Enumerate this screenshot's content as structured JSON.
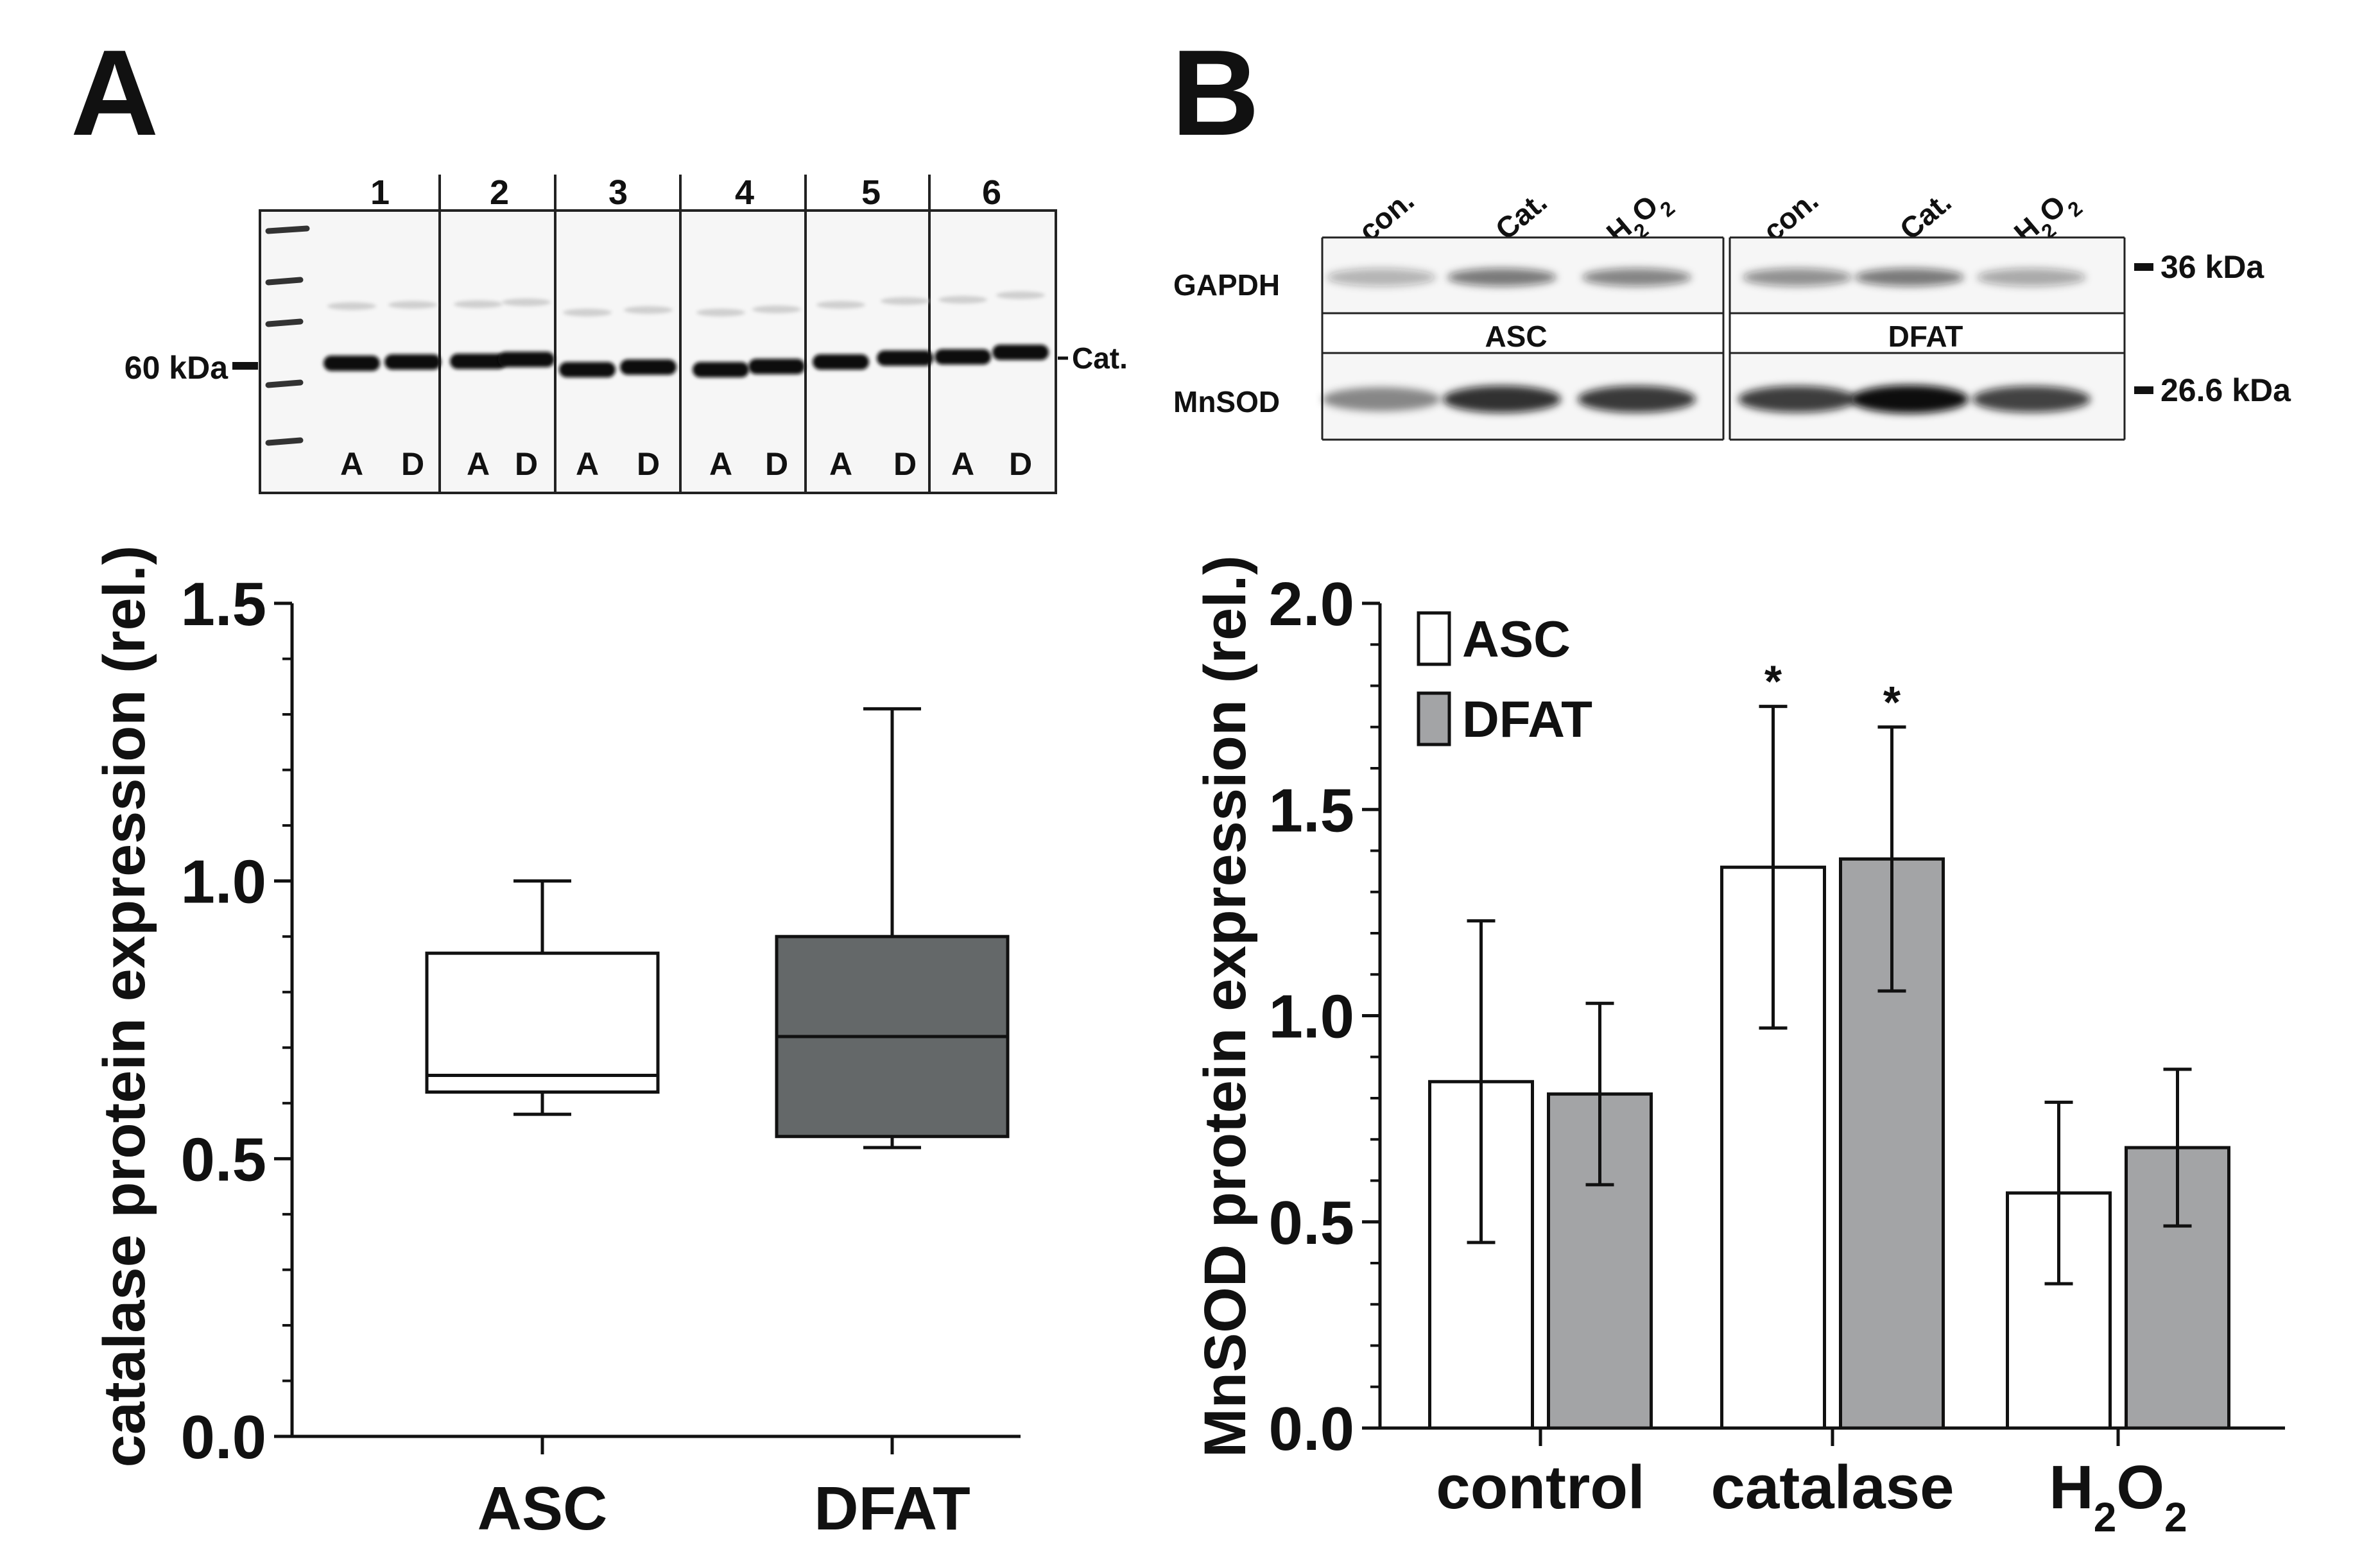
{
  "panels": {
    "a": "A",
    "b": "B"
  },
  "panel_a": {
    "blot": {
      "lanes": [
        "1",
        "2",
        "3",
        "4",
        "5",
        "6"
      ],
      "lane_pair_labels": [
        "A",
        "D"
      ],
      "marker_label": "60 kDa",
      "band_label": "Cat."
    }
  },
  "panel_b": {
    "blot": {
      "conditions": [
        "con.",
        "Cat.",
        "H2O2"
      ],
      "proteins": [
        "GAPDH",
        "MnSOD"
      ],
      "groups": [
        "ASC",
        "DFAT"
      ],
      "markers": [
        "36 kDa",
        "26.6 kDa"
      ]
    }
  },
  "chart_data": [
    {
      "type": "box",
      "panel": "A",
      "title": "",
      "xlabel": "",
      "ylabel": "catalase protein expression (rel.)",
      "ylim": [
        0,
        1.5
      ],
      "yticks": [
        "0.0",
        "0.5",
        "1.0",
        "1.5"
      ],
      "categories": [
        "ASC",
        "DFAT"
      ],
      "boxes": [
        {
          "name": "ASC",
          "min": 0.58,
          "q1": 0.62,
          "median": 0.65,
          "q3": 0.87,
          "max": 1.0,
          "color": "#ffffff"
        },
        {
          "name": "DFAT",
          "min": 0.52,
          "q1": 0.54,
          "median": 0.72,
          "q3": 0.9,
          "max": 1.31,
          "color": "#646869"
        }
      ]
    },
    {
      "type": "bar",
      "panel": "B",
      "title": "",
      "xlabel": "",
      "ylabel": "MnSOD protein expression (rel.)",
      "ylim": [
        0,
        2.0
      ],
      "yticks": [
        "0.0",
        "0.5",
        "1.0",
        "1.5",
        "2.0"
      ],
      "categories": [
        "control",
        "catalase",
        "H2O2"
      ],
      "legend": "top-left",
      "significance_marker": "*",
      "series": [
        {
          "name": "ASC",
          "color": "#ffffff",
          "values": [
            0.84,
            1.36,
            0.57
          ],
          "errors": [
            0.39,
            0.39,
            0.22
          ],
          "significant": [
            false,
            true,
            false
          ]
        },
        {
          "name": "DFAT",
          "color": "#a3a4a6",
          "values": [
            0.81,
            1.38,
            0.68
          ],
          "errors": [
            0.22,
            0.32,
            0.19
          ],
          "significant": [
            false,
            true,
            false
          ]
        }
      ]
    }
  ]
}
